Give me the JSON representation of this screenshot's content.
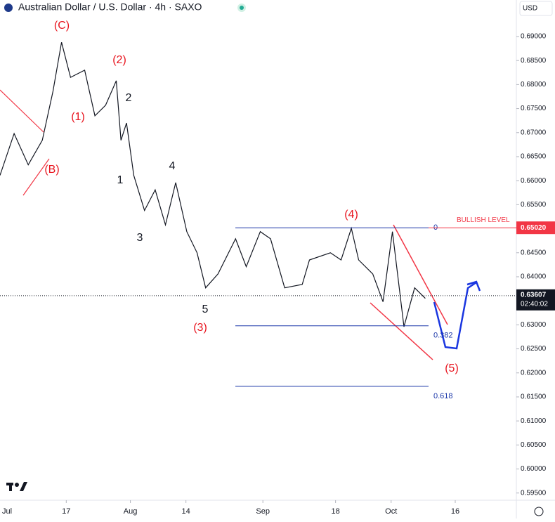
{
  "header": {
    "symbol": "Australian Dollar / U.S. Dollar · 4h · SAXO",
    "currency": "USD"
  },
  "chart_data": {
    "type": "line",
    "color": "#131722",
    "x": [
      1.5,
      4.8,
      8.1,
      11.4,
      13.9,
      15.9,
      18.0,
      21.3,
      23.7,
      26.2,
      28.7,
      29.8,
      31.1,
      32.8,
      35.3,
      37.8,
      40.2,
      42.6,
      45.2,
      47.6,
      49.6,
      52.5,
      56.6,
      59.1,
      62.4,
      64.8,
      68.1,
      72.2,
      73.9,
      78.8,
      81.3,
      83.7,
      85.4,
      88.7,
      91.1,
      93.3,
      96.0,
      98.5,
      101.0
    ],
    "values": [
      0.6611,
      0.6698,
      0.6633,
      0.6684,
      0.6786,
      0.6888,
      0.6815,
      0.683,
      0.6735,
      0.6757,
      0.6808,
      0.6684,
      0.672,
      0.6611,
      0.6538,
      0.6581,
      0.6508,
      0.6596,
      0.6494,
      0.645,
      0.6377,
      0.6406,
      0.6479,
      0.6421,
      0.6494,
      0.6479,
      0.6377,
      0.6384,
      0.6435,
      0.645,
      0.6435,
      0.6501,
      0.6435,
      0.6406,
      0.6348,
      0.6494,
      0.6296,
      0.6377,
      0.6355
    ],
    "xlim": [
      1.5,
      122.3
    ],
    "ylim": [
      0.5935,
      0.6976
    ],
    "xticks": [
      {
        "value": 1,
        "label": "Jul"
      },
      {
        "value": 17,
        "label": "17"
      },
      {
        "value": 32,
        "label": "Aug"
      },
      {
        "value": 45,
        "label": "14"
      },
      {
        "value": 63,
        "label": "Sep"
      },
      {
        "value": 80,
        "label": "18"
      },
      {
        "value": 93,
        "label": "Oct"
      },
      {
        "value": 108,
        "label": "16"
      }
    ],
    "yticks": [
      {
        "value": 0.69,
        "label": "0.69000"
      },
      {
        "value": 0.685,
        "label": "0.68500"
      },
      {
        "value": 0.68,
        "label": "0.68000"
      },
      {
        "value": 0.675,
        "label": "0.67500"
      },
      {
        "value": 0.67,
        "label": "0.67000"
      },
      {
        "value": 0.665,
        "label": "0.66500"
      },
      {
        "value": 0.66,
        "label": "0.66000"
      },
      {
        "value": 0.655,
        "label": "0.65500"
      },
      {
        "value": 0.65,
        "label": "0.65000"
      },
      {
        "value": 0.645,
        "label": "0.64500"
      },
      {
        "value": 0.64,
        "label": "0.64000"
      },
      {
        "value": 0.635,
        "label": "0.63500"
      },
      {
        "value": 0.63,
        "label": "0.63000"
      },
      {
        "value": 0.625,
        "label": "0.62500"
      },
      {
        "value": 0.62,
        "label": "0.62000"
      },
      {
        "value": 0.615,
        "label": "0.61500"
      },
      {
        "value": 0.61,
        "label": "0.61000"
      },
      {
        "value": 0.605,
        "label": "0.60500"
      },
      {
        "value": 0.6,
        "label": "0.60000"
      },
      {
        "value": 0.595,
        "label": "0.59500"
      }
    ],
    "levels": [
      {
        "label": "0",
        "value": 0.6502
      },
      {
        "label": "0.382",
        "value": 0.6298
      },
      {
        "label": "0.618",
        "value": 0.6172
      }
    ],
    "bullish_level": {
      "label": "BULLISH LEVEL",
      "value": 0.6502,
      "price_label": "0.65020"
    },
    "last_price": {
      "value": 0.63607,
      "label": "0.63607",
      "countdown": "02:40:02"
    },
    "annotations": [
      "(C)",
      "(2)",
      "2",
      "(1)",
      "(B)",
      "1",
      "4",
      "3",
      "(4)",
      "5",
      "(3)",
      "(5)"
    ]
  }
}
